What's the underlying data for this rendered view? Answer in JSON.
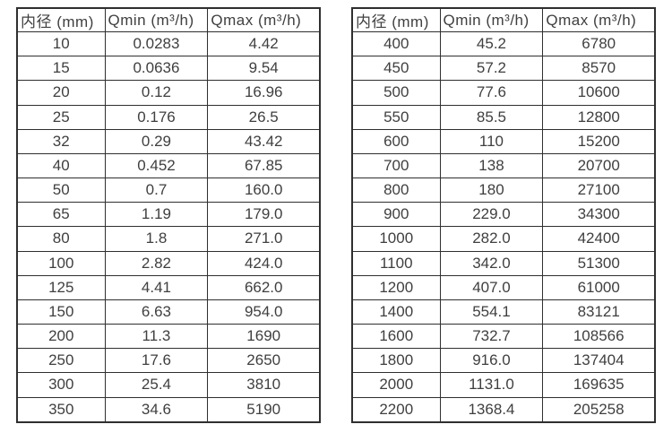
{
  "page": {
    "background_color": "#ffffff",
    "border_color": "#2f2f2f",
    "text_color": "#3f3f3f",
    "description": "Flow meter diameter specification tables: inner diameter vs minimum and maximum flow rate"
  },
  "tables": [
    {
      "name": "flow-table-small-diameters",
      "headers": [
        "内径 (mm)",
        "Qmin (m³/h)",
        "Qmax (m³/h)"
      ],
      "rows": [
        [
          "10",
          "0.0283",
          "4.42"
        ],
        [
          "15",
          "0.0636",
          "9.54"
        ],
        [
          "20",
          "0.12",
          "16.96"
        ],
        [
          "25",
          "0.176",
          "26.5"
        ],
        [
          "32",
          "0.29",
          "43.42"
        ],
        [
          "40",
          "0.452",
          "67.85"
        ],
        [
          "50",
          "0.7",
          "160.0"
        ],
        [
          "65",
          "1.19",
          "179.0"
        ],
        [
          "80",
          "1.8",
          "271.0"
        ],
        [
          "100",
          "2.82",
          "424.0"
        ],
        [
          "125",
          "4.41",
          "662.0"
        ],
        [
          "150",
          "6.63",
          "954.0"
        ],
        [
          "200",
          "11.3",
          "1690"
        ],
        [
          "250",
          "17.6",
          "2650"
        ],
        [
          "300",
          "25.4",
          "3810"
        ],
        [
          "350",
          "34.6",
          "5190"
        ]
      ]
    },
    {
      "name": "flow-table-large-diameters",
      "headers": [
        "内径 (mm)",
        "Qmin (m³/h)",
        "Qmax (m³/h)"
      ],
      "rows": [
        [
          "400",
          "45.2",
          "6780"
        ],
        [
          "450",
          "57.2",
          "8570"
        ],
        [
          "500",
          "77.6",
          "10600"
        ],
        [
          "550",
          "85.5",
          "12800"
        ],
        [
          "600",
          "110",
          "15200"
        ],
        [
          "700",
          "138",
          "20700"
        ],
        [
          "800",
          "180",
          "27100"
        ],
        [
          "900",
          "229.0",
          "34300"
        ],
        [
          "1000",
          "282.0",
          "42400"
        ],
        [
          "1100",
          "342.0",
          "51300"
        ],
        [
          "1200",
          "407.0",
          "61000"
        ],
        [
          "1400",
          "554.1",
          "83121"
        ],
        [
          "1600",
          "732.7",
          "108566"
        ],
        [
          "1800",
          "916.0",
          "137404"
        ],
        [
          "2000",
          "1131.0",
          "169635"
        ],
        [
          "2200",
          "1368.4",
          "205258"
        ]
      ]
    }
  ],
  "chart_data": {
    "type": "table",
    "title": "",
    "columns": [
      "内径 (mm)",
      "Qmin (m³/h)",
      "Qmax (m³/h)"
    ],
    "diameters_mm": [
      10,
      15,
      20,
      25,
      32,
      40,
      50,
      65,
      80,
      100,
      125,
      150,
      200,
      250,
      300,
      350,
      400,
      450,
      500,
      550,
      600,
      700,
      800,
      900,
      1000,
      1100,
      1200,
      1400,
      1600,
      1800,
      2000,
      2200
    ],
    "qmin_m3h": [
      0.0283,
      0.0636,
      0.12,
      0.176,
      0.29,
      0.452,
      0.7,
      1.19,
      1.8,
      2.82,
      4.41,
      6.63,
      11.3,
      17.6,
      25.4,
      34.6,
      45.2,
      57.2,
      77.6,
      85.5,
      110,
      138,
      180,
      229.0,
      282.0,
      342.0,
      407.0,
      554.1,
      732.7,
      916.0,
      1131.0,
      1368.4
    ],
    "qmax_m3h": [
      4.42,
      9.54,
      16.96,
      26.5,
      43.42,
      67.85,
      160.0,
      179.0,
      271.0,
      424.0,
      662.0,
      954.0,
      1690,
      2650,
      3810,
      5190,
      6780,
      8570,
      10600,
      12800,
      15200,
      20700,
      27100,
      34300,
      42400,
      51300,
      61000,
      83121,
      108566,
      137404,
      169635,
      205258
    ]
  }
}
